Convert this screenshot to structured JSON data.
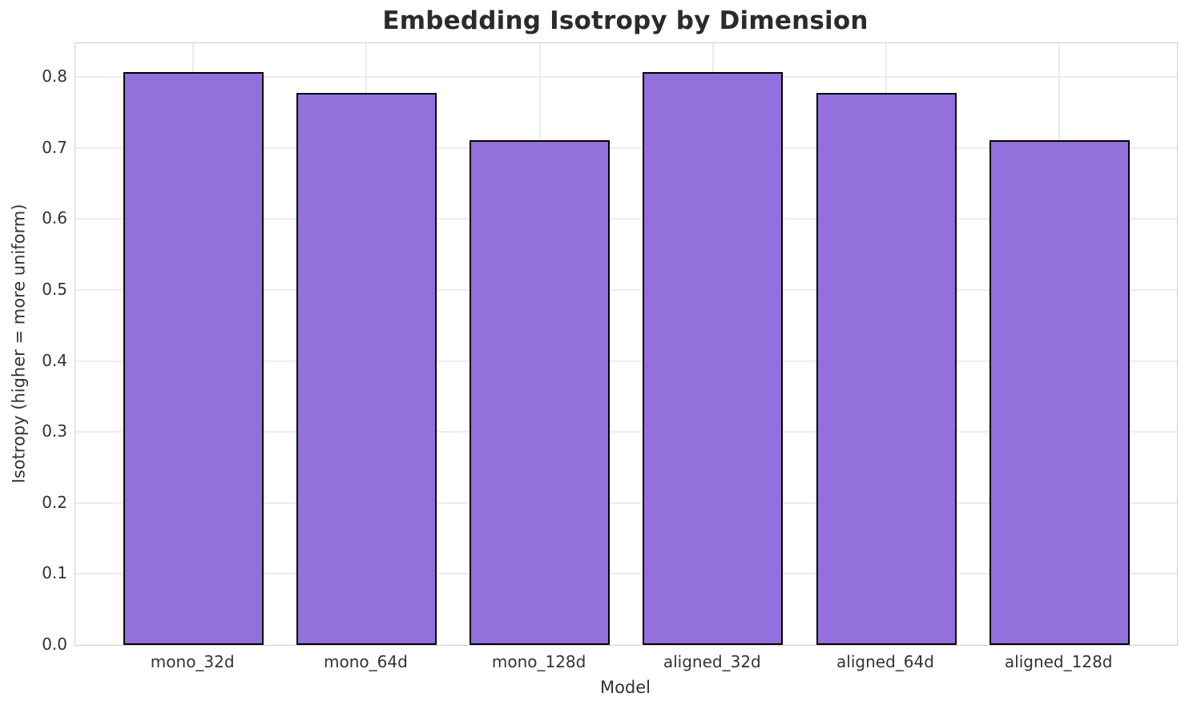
{
  "chart_data": {
    "type": "bar",
    "title": "Embedding Isotropy by Dimension",
    "xlabel": "Model",
    "ylabel": "Isotropy (higher = more uniform)",
    "categories": [
      "mono_32d",
      "mono_64d",
      "mono_128d",
      "aligned_32d",
      "aligned_64d",
      "aligned_128d"
    ],
    "values": [
      0.807,
      0.778,
      0.711,
      0.807,
      0.778,
      0.711
    ],
    "ytick_labels": [
      "0.0",
      "0.1",
      "0.2",
      "0.3",
      "0.4",
      "0.5",
      "0.6",
      "0.7",
      "0.8"
    ],
    "yticks": [
      0.0,
      0.1,
      0.2,
      0.3,
      0.4,
      0.5,
      0.6,
      0.7,
      0.8
    ],
    "ylim": [
      0,
      0.8476
    ],
    "grid": true,
    "legend": "none",
    "bar_color": "#9370DB",
    "bar_edge_color": "#000000",
    "grid_color": "#ececec",
    "spine_color": "#cfcfcf",
    "text_color": "#333333",
    "title_color": "#2b2b2b"
  }
}
